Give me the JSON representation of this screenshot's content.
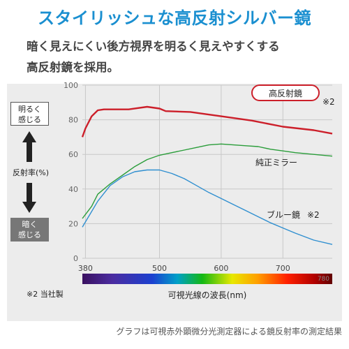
{
  "header": {
    "title": "スタイリッシュな高反射シルバー鏡",
    "desc_line1": "暗く見えにくい後方視界を明るく見えやすくする",
    "desc_line2": "高反射鏡を採用。"
  },
  "side": {
    "bright_line1": "明るく",
    "bright_line2": "感じる",
    "axis_label": "反射率(%)",
    "dark_line1": "暗く",
    "dark_line2": "感じる"
  },
  "notes": {
    "company_note": "※2 当社製",
    "footer": "グラフは可視赤外顕微分光測定器による鏡反射率の測定結果"
  },
  "chart_data": {
    "type": "line",
    "xlabel": "可視光線の波長(nm)",
    "ylabel": "反射率(%)",
    "xlim": [
      375,
      780
    ],
    "ylim": [
      0,
      100
    ],
    "x_ticks": [
      380,
      500,
      600,
      700
    ],
    "x_end_label": "780",
    "y_ticks": [
      0,
      20,
      40,
      60,
      80,
      100
    ],
    "grid": true,
    "series": [
      {
        "name": "高反射鏡",
        "name_note": "※2",
        "color": "#cc1f2a",
        "x": [
          375,
          380,
          390,
          400,
          410,
          420,
          450,
          480,
          500,
          510,
          550,
          600,
          650,
          700,
          750,
          780
        ],
        "values": [
          70,
          75,
          82,
          85.5,
          86,
          86,
          86,
          87.5,
          86.5,
          85,
          84.5,
          82,
          79.5,
          76,
          74,
          72
        ]
      },
      {
        "name": "純正ミラー",
        "color": "#2a9d3a",
        "x": [
          375,
          390,
          400,
          420,
          440,
          460,
          480,
          500,
          520,
          540,
          560,
          580,
          600,
          620,
          640,
          660,
          680,
          700,
          720,
          750,
          780
        ],
        "values": [
          23,
          30,
          37,
          43,
          48,
          53,
          57,
          59.5,
          61,
          62.5,
          64,
          65.5,
          66,
          65.5,
          65,
          64.5,
          63,
          62,
          61,
          60,
          59
        ]
      },
      {
        "name": "ブルー鏡",
        "name_note": "※2",
        "color": "#2f8fd0",
        "x": [
          375,
          390,
          400,
          420,
          440,
          460,
          480,
          500,
          520,
          540,
          560,
          580,
          600,
          620,
          640,
          660,
          680,
          700,
          720,
          750,
          780
        ],
        "values": [
          18,
          27,
          33,
          42,
          47,
          50,
          51,
          51,
          49,
          46,
          42,
          38,
          34.5,
          31,
          27.5,
          24,
          20.5,
          17.5,
          14.5,
          10.5,
          8
        ]
      }
    ],
    "spectrum_bar": true
  }
}
